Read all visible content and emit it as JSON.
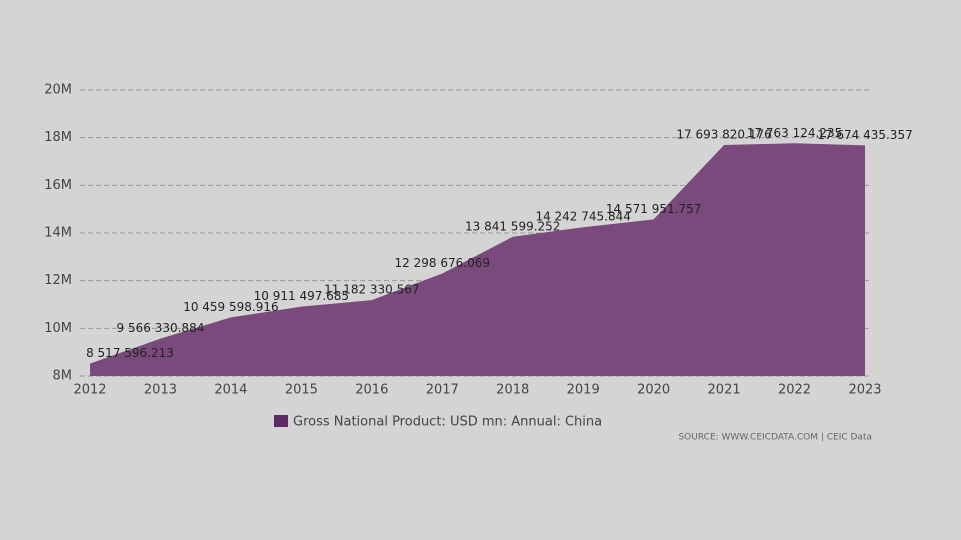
{
  "chart_data": {
    "type": "area",
    "categories": [
      "2012",
      "2013",
      "2014",
      "2015",
      "2016",
      "2017",
      "2018",
      "2019",
      "2020",
      "2021",
      "2022",
      "2023"
    ],
    "series": [
      {
        "name": "Gross National Product: USD mn: Annual: China",
        "color": "#7a4a7c",
        "values": [
          8517596.213,
          9566330.884,
          10459598.916,
          10911497.685,
          11182330.567,
          12298676.069,
          13841599.252,
          14242745.844,
          14571951.757,
          17693820.176,
          17763124.235,
          17674435.357
        ],
        "value_labels": [
          "8 517 596.213",
          "9 566 330.884",
          "10 459 598.916",
          "10 911 497.685",
          "11 182 330.567",
          "12 298 676.069",
          "13 841 599.252",
          "14 242 745.844",
          "14 571 951.757",
          "17 693 820.176",
          "17 763 124.235",
          "17 674 435.357"
        ]
      }
    ],
    "ylim": [
      8000000,
      20000000
    ],
    "yticks": [
      {
        "value": 8000000,
        "label": "8M"
      },
      {
        "value": 10000000,
        "label": "10M"
      },
      {
        "value": 12000000,
        "label": "12M"
      },
      {
        "value": 14000000,
        "label": "14M"
      },
      {
        "value": 16000000,
        "label": "16M"
      },
      {
        "value": 18000000,
        "label": "18M"
      },
      {
        "value": 20000000,
        "label": "20M"
      }
    ],
    "grid": true,
    "source": "SOURCE: WWW.CEICDATA.COM | CEIC Data"
  }
}
